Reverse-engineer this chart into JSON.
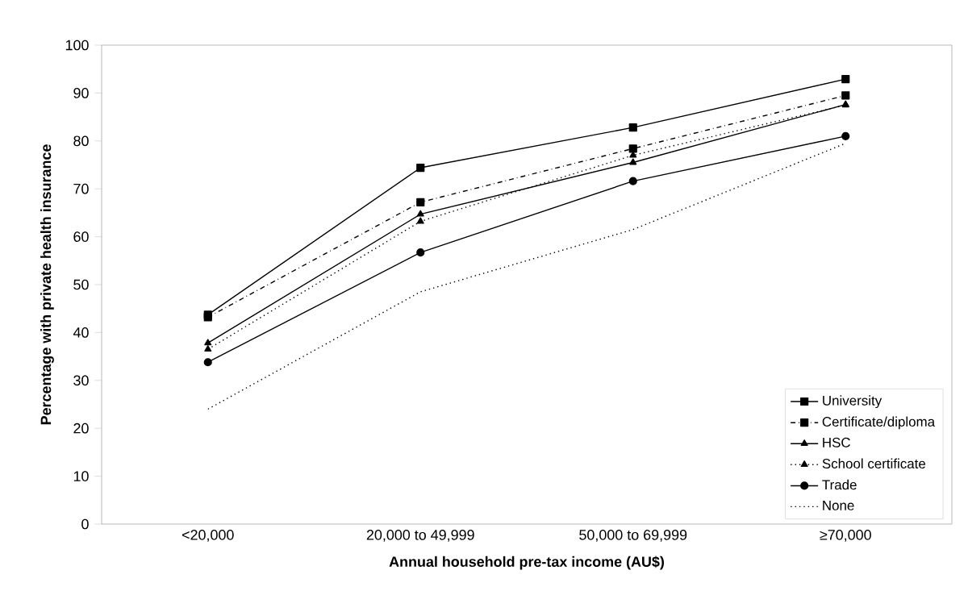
{
  "chart_data": {
    "type": "line",
    "xlabel": "Annual household pre-tax income (AU$)",
    "ylabel": "Percentage with private health insurance",
    "categories": [
      "<20,000",
      "20,000 to 49,999",
      "50,000 to 69,999",
      "≥70,000"
    ],
    "ylim": [
      0,
      100
    ],
    "yticks": [
      0,
      10,
      20,
      30,
      40,
      50,
      60,
      70,
      80,
      90,
      100
    ],
    "grid": false,
    "legend": "bottom right",
    "series": [
      {
        "name": "University",
        "color": "#000000",
        "marker": "square",
        "line_style": "solid",
        "values": [
          43.7,
          74.4,
          82.8,
          92.9
        ]
      },
      {
        "name": "Certificate/diploma",
        "color": "#000000",
        "marker": "square",
        "line_style": "dashdot",
        "values": [
          43.2,
          67.2,
          78.4,
          89.5
        ]
      },
      {
        "name": "HSC",
        "color": "#000000",
        "marker": "triangle",
        "line_style": "solid",
        "values": [
          37.8,
          64.7,
          75.5,
          87.6
        ]
      },
      {
        "name": "School certificate",
        "color": "#000000",
        "marker": "triangle",
        "line_style": "dotted",
        "values": [
          36.5,
          63.2,
          77.0,
          87.5
        ]
      },
      {
        "name": "Trade",
        "color": "#000000",
        "marker": "circle",
        "line_style": "solid",
        "values": [
          33.8,
          56.7,
          71.6,
          81.0
        ]
      },
      {
        "name": "None",
        "color": "#000000",
        "marker": "none",
        "line_style": "dotted",
        "values": [
          24.0,
          48.5,
          61.5,
          79.5
        ]
      }
    ]
  }
}
